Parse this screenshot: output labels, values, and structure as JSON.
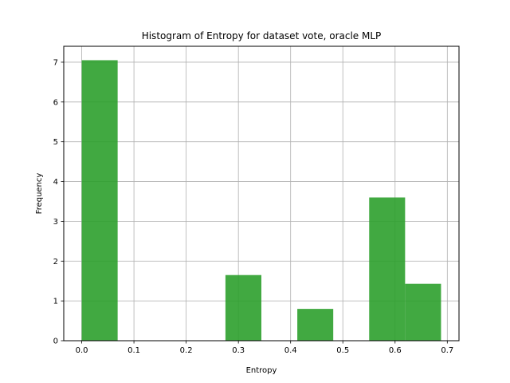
{
  "chart_data": {
    "type": "bar",
    "title": "Histogram of Entropy for dataset vote, oracle MLP",
    "xlabel": "Entropy",
    "ylabel": "Frequency",
    "xlim": [
      -0.0344,
      0.7224
    ],
    "ylim": [
      0,
      7.4
    ],
    "xticks": [
      "0.0",
      "0.1",
      "0.2",
      "0.3",
      "0.4",
      "0.5",
      "0.6",
      "0.7"
    ],
    "yticks": [
      "0",
      "1",
      "2",
      "3",
      "4",
      "5",
      "6",
      "7"
    ],
    "grid": true,
    "bar_color": "#2ca02c",
    "bar_opacity": 0.9,
    "bins": [
      {
        "x0": 0.0,
        "x1": 0.0688,
        "value": 7.05
      },
      {
        "x0": 0.0688,
        "x1": 0.1376,
        "value": 0
      },
      {
        "x0": 0.1376,
        "x1": 0.2064,
        "value": 0
      },
      {
        "x0": 0.2064,
        "x1": 0.2752,
        "value": 0
      },
      {
        "x0": 0.2752,
        "x1": 0.344,
        "value": 1.65
      },
      {
        "x0": 0.344,
        "x1": 0.4128,
        "value": 0
      },
      {
        "x0": 0.4128,
        "x1": 0.4816,
        "value": 0.8
      },
      {
        "x0": 0.4816,
        "x1": 0.5504,
        "value": 0
      },
      {
        "x0": 0.5504,
        "x1": 0.6192,
        "value": 3.6
      },
      {
        "x0": 0.6192,
        "x1": 0.688,
        "value": 1.43
      }
    ]
  }
}
